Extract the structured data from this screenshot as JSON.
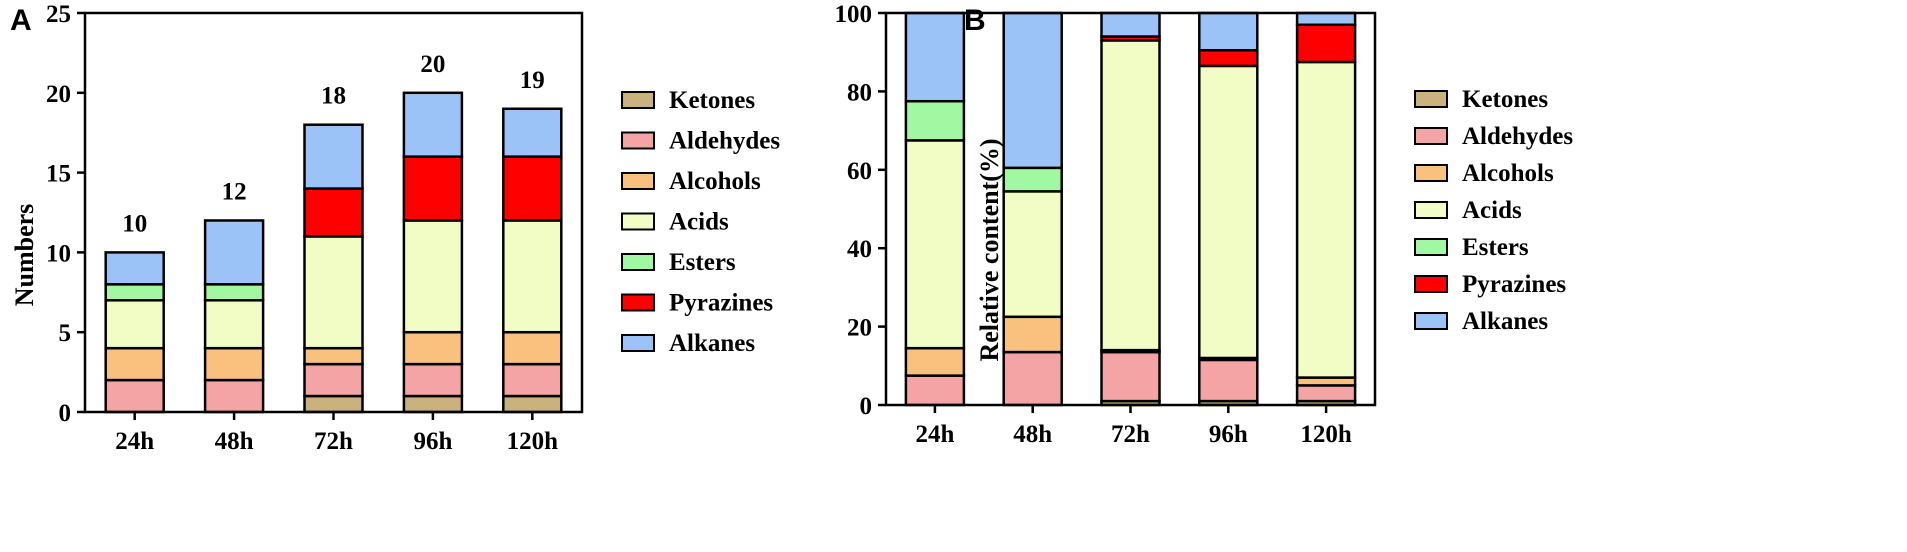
{
  "colors": {
    "Ketones": "#c9b27e",
    "Aldehydes": "#f4a4a4",
    "Alcohols": "#f9c07e",
    "Acids": "#f2fdc6",
    "Esters": "#a2f7a2",
    "Pyrazines": "#ff0000",
    "Alkanes": "#9cc3f7"
  },
  "chart_data": [
    {
      "panel_label": "A",
      "type": "bar",
      "stacked": true,
      "categories": [
        "24h",
        "48h",
        "72h",
        "96h",
        "120h"
      ],
      "series": [
        {
          "name": "Ketones",
          "values": [
            0,
            0,
            1,
            1,
            1
          ]
        },
        {
          "name": "Aldehydes",
          "values": [
            2,
            2,
            2,
            2,
            2
          ]
        },
        {
          "name": "Alcohols",
          "values": [
            2,
            2,
            1,
            2,
            2
          ]
        },
        {
          "name": "Acids",
          "values": [
            3,
            3,
            7,
            7,
            7
          ]
        },
        {
          "name": "Esters",
          "values": [
            1,
            1,
            0,
            0,
            0
          ]
        },
        {
          "name": "Pyrazines",
          "values": [
            0,
            0,
            3,
            4,
            4
          ]
        },
        {
          "name": "Alkanes",
          "values": [
            2,
            4,
            4,
            4,
            3
          ]
        }
      ],
      "totals": [
        10,
        12,
        18,
        20,
        19
      ],
      "ylabel": "Numbers",
      "xlabel": "",
      "ylim": [
        0,
        25
      ],
      "yticks": [
        0,
        5,
        10,
        15,
        20,
        25
      ],
      "legend": [
        "Ketones",
        "Aldehydes",
        "Alcohols",
        "Acids",
        "Esters",
        "Pyrazines",
        "Alkanes"
      ],
      "legend_position": "right"
    },
    {
      "panel_label": "B",
      "type": "bar",
      "stacked": true,
      "categories": [
        "24h",
        "48h",
        "72h",
        "96h",
        "120h"
      ],
      "series": [
        {
          "name": "Ketones",
          "values": [
            0,
            0,
            1,
            1,
            1
          ]
        },
        {
          "name": "Aldehydes",
          "values": [
            7.5,
            13.5,
            12.5,
            10.5,
            4
          ]
        },
        {
          "name": "Alcohols",
          "values": [
            7,
            9,
            0.5,
            0.5,
            2
          ]
        },
        {
          "name": "Acids",
          "values": [
            53,
            32,
            79,
            74.5,
            80.5
          ]
        },
        {
          "name": "Esters",
          "values": [
            10,
            6,
            0,
            0,
            0
          ]
        },
        {
          "name": "Pyrazines",
          "values": [
            0,
            0,
            1,
            4,
            9.5
          ]
        },
        {
          "name": "Alkanes",
          "values": [
            22.5,
            39.5,
            6,
            9.5,
            3
          ]
        }
      ],
      "ylabel": "Relative content(%)",
      "xlabel": "",
      "ylim": [
        0,
        100
      ],
      "yticks": [
        0,
        20,
        40,
        60,
        80,
        100
      ],
      "legend": [
        "Ketones",
        "Aldehydes",
        "Alcohols",
        "Acids",
        "Esters",
        "Pyrazines",
        "Alkanes"
      ],
      "legend_position": "right"
    }
  ]
}
